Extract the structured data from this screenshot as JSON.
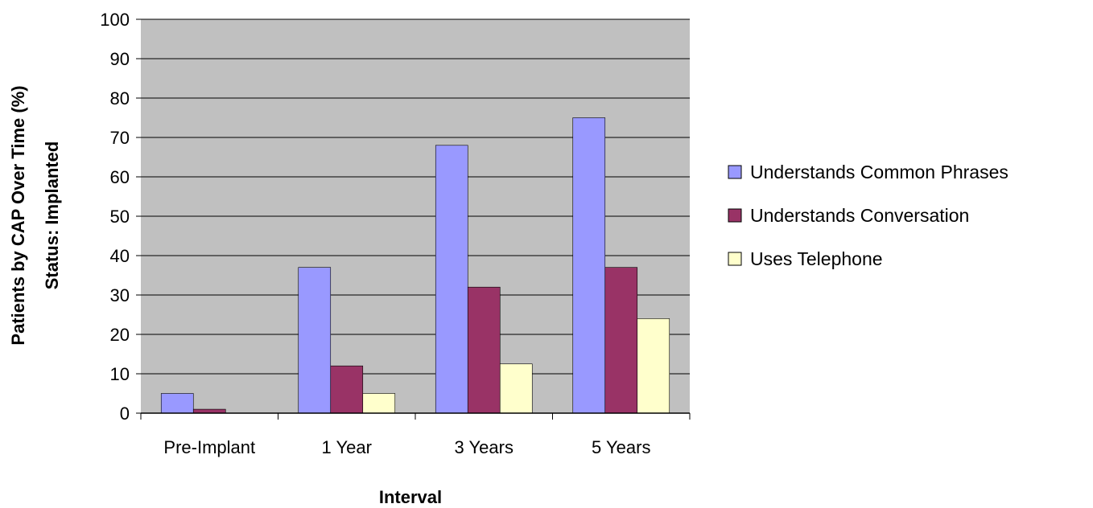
{
  "chart_data": {
    "type": "bar",
    "title": "",
    "xlabel": "Interval",
    "ylabel": [
      "Patients by CAP Over Time (%)",
      "Status: Implanted"
    ],
    "categories": [
      "Pre-Implant",
      "1 Year",
      "3 Years",
      "5 Years"
    ],
    "ylim": [
      0,
      100
    ],
    "yticks": [
      "0",
      "10",
      "20",
      "30",
      "40",
      "50",
      "60",
      "70",
      "80",
      "90",
      "100"
    ],
    "grid": true,
    "legend_position": "right",
    "plot_background": "#c0c0c0",
    "series": [
      {
        "name": "Understands Common Phrases",
        "color": "#9999ff",
        "values": [
          5,
          37,
          68,
          75
        ]
      },
      {
        "name": "Understands Conversation",
        "color": "#993366",
        "values": [
          1,
          12,
          32,
          37
        ]
      },
      {
        "name": "Uses Telephone",
        "color": "#ffffcc",
        "values": [
          0,
          5,
          12.5,
          24
        ]
      }
    ]
  }
}
